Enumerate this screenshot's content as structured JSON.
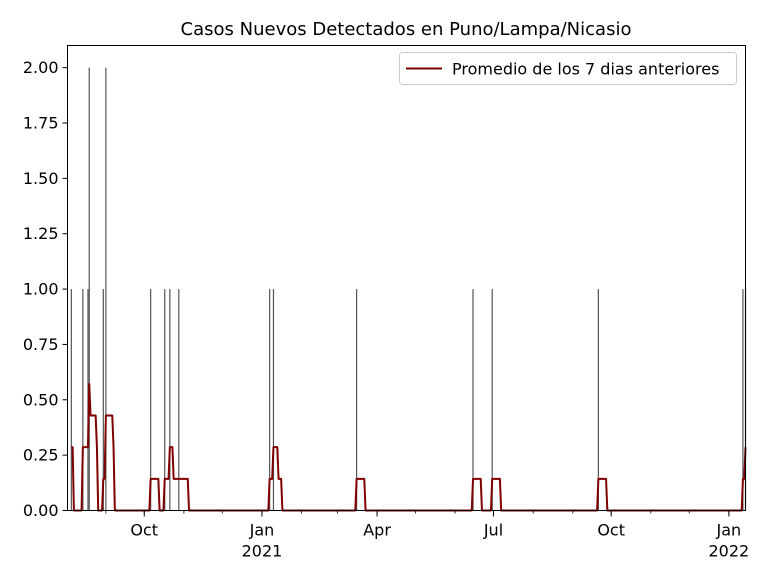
{
  "chart_data": {
    "type": "bar+line",
    "title": "Casos Nuevos Detectados en Puno/Lampa/Nicasio",
    "xlabel": "",
    "ylabel": "",
    "x_range": [
      "2020-08-02",
      "2022-01-14"
    ],
    "ylim": [
      0,
      2.1
    ],
    "y_ticks": [
      0.0,
      0.25,
      0.5,
      0.75,
      1.0,
      1.25,
      1.5,
      1.75,
      2.0
    ],
    "y_tick_labels": [
      "0.00",
      "0.25",
      "0.50",
      "0.75",
      "1.00",
      "1.25",
      "1.50",
      "1.75",
      "2.00"
    ],
    "x_ticks": [
      {
        "date": "2020-10-01",
        "label": "Oct",
        "year": ""
      },
      {
        "date": "2021-01-01",
        "label": "Jan",
        "year": "2021"
      },
      {
        "date": "2021-04-01",
        "label": "Apr",
        "year": ""
      },
      {
        "date": "2021-07-01",
        "label": "Jul",
        "year": ""
      },
      {
        "date": "2021-10-01",
        "label": "Oct",
        "year": ""
      },
      {
        "date": "2022-01-01",
        "label": "Jan",
        "year": "2022"
      }
    ],
    "grid": false,
    "legend_position": "top-right",
    "legend_label": "Promedio de los 7 dias anteriores",
    "colors": {
      "bars": "#555555",
      "line": "#800000"
    },
    "series": [
      {
        "name": "",
        "kind": "bar",
        "points": [
          [
            "2020-08-05",
            1
          ],
          [
            "2020-08-14",
            1
          ],
          [
            "2020-08-18",
            1
          ],
          [
            "2020-08-19",
            2
          ],
          [
            "2020-08-30",
            1
          ],
          [
            "2020-09-01",
            2
          ],
          [
            "2020-10-06",
            1
          ],
          [
            "2020-10-17",
            1
          ],
          [
            "2020-10-21",
            1
          ],
          [
            "2020-10-28",
            1
          ],
          [
            "2021-01-07",
            1
          ],
          [
            "2021-01-10",
            1
          ],
          [
            "2021-03-16",
            1
          ],
          [
            "2021-06-15",
            1
          ],
          [
            "2021-06-30",
            1
          ],
          [
            "2021-09-21",
            1
          ],
          [
            "2022-01-12",
            1
          ],
          [
            "2022-01-14",
            1
          ]
        ]
      },
      {
        "name": "Promedio de los 7 dias anteriores",
        "kind": "line",
        "points": [
          [
            "2020-08-05",
            0.286
          ],
          [
            "2020-08-06",
            0.286
          ],
          [
            "2020-08-07",
            0.0
          ],
          [
            "2020-08-13",
            0.0
          ],
          [
            "2020-08-14",
            0.286
          ],
          [
            "2020-08-18",
            0.286
          ],
          [
            "2020-08-19",
            0.571
          ],
          [
            "2020-08-20",
            0.429
          ],
          [
            "2020-08-24",
            0.429
          ],
          [
            "2020-08-25",
            0.286
          ],
          [
            "2020-08-26",
            0.0
          ],
          [
            "2020-08-29",
            0.0
          ],
          [
            "2020-08-30",
            0.143
          ],
          [
            "2020-08-31",
            0.143
          ],
          [
            "2020-09-01",
            0.429
          ],
          [
            "2020-09-06",
            0.429
          ],
          [
            "2020-09-07",
            0.286
          ],
          [
            "2020-09-08",
            0.0
          ],
          [
            "2020-10-05",
            0.0
          ],
          [
            "2020-10-06",
            0.143
          ],
          [
            "2020-10-12",
            0.143
          ],
          [
            "2020-10-13",
            0.0
          ],
          [
            "2020-10-16",
            0.0
          ],
          [
            "2020-10-17",
            0.143
          ],
          [
            "2020-10-20",
            0.143
          ],
          [
            "2020-10-21",
            0.286
          ],
          [
            "2020-10-23",
            0.286
          ],
          [
            "2020-10-24",
            0.143
          ],
          [
            "2020-11-04",
            0.143
          ],
          [
            "2020-11-05",
            0.0
          ],
          [
            "2021-01-06",
            0.0
          ],
          [
            "2021-01-07",
            0.143
          ],
          [
            "2021-01-09",
            0.143
          ],
          [
            "2021-01-10",
            0.286
          ],
          [
            "2021-01-13",
            0.286
          ],
          [
            "2021-01-14",
            0.143
          ],
          [
            "2021-01-16",
            0.143
          ],
          [
            "2021-01-17",
            0.0
          ],
          [
            "2021-03-15",
            0.0
          ],
          [
            "2021-03-16",
            0.143
          ],
          [
            "2021-03-22",
            0.143
          ],
          [
            "2021-03-23",
            0.0
          ],
          [
            "2021-06-14",
            0.0
          ],
          [
            "2021-06-15",
            0.143
          ],
          [
            "2021-06-21",
            0.143
          ],
          [
            "2021-06-22",
            0.0
          ],
          [
            "2021-06-29",
            0.0
          ],
          [
            "2021-06-30",
            0.143
          ],
          [
            "2021-07-06",
            0.143
          ],
          [
            "2021-07-07",
            0.0
          ],
          [
            "2021-09-20",
            0.0
          ],
          [
            "2021-09-21",
            0.143
          ],
          [
            "2021-09-27",
            0.143
          ],
          [
            "2021-09-28",
            0.0
          ],
          [
            "2022-01-11",
            0.0
          ],
          [
            "2022-01-12",
            0.143
          ],
          [
            "2022-01-13",
            0.143
          ],
          [
            "2022-01-14",
            0.286
          ]
        ]
      }
    ]
  }
}
